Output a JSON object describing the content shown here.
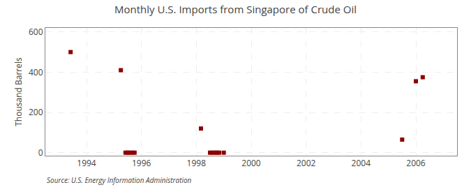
{
  "chart_data": {
    "type": "scatter",
    "title": "Monthly U.S. Imports from Singapore of Crude Oil",
    "ylabel": "Thousand Barrels",
    "annotations": [
      "Source: U.S. Energy Information Administration"
    ],
    "x": [
      1993.42,
      1995.25,
      1995.42,
      1995.5,
      1995.58,
      1995.67,
      1995.75,
      1998.17,
      1998.5,
      1998.58,
      1998.67,
      1998.75,
      1998.83,
      1999.0,
      2005.5,
      2006.0,
      2006.25
    ],
    "values": [
      500,
      410,
      0,
      0,
      0,
      0,
      0,
      120,
      0,
      0,
      0,
      0,
      0,
      0,
      65,
      355,
      375
    ],
    "color": "#8b0000",
    "marker": "square",
    "xlim": [
      1992.5,
      2007.5
    ],
    "ylim": [
      -15,
      620
    ],
    "xticks": [
      1994,
      1996,
      1998,
      2000,
      2002,
      2004,
      2006
    ],
    "yticks": [
      0,
      200,
      400,
      600
    ],
    "grid": true
  }
}
